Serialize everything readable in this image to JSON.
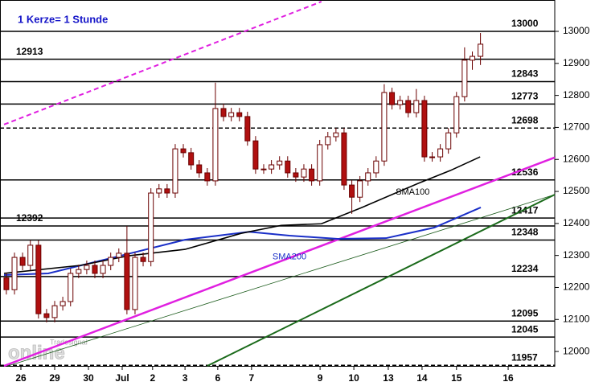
{
  "chart_data": {
    "type": "candlestick",
    "title": "1 Kerze= 1 Stunde",
    "xlim": [
      0,
      16.31
    ],
    "ylim": [
      11955,
      13098
    ],
    "yticks": [
      12000,
      12100,
      12200,
      12300,
      12400,
      12500,
      12600,
      12700,
      12800,
      12900,
      13000
    ],
    "xticks": [
      {
        "value": 0.5,
        "label": "26"
      },
      {
        "value": 1.5,
        "label": "29"
      },
      {
        "value": 2.5,
        "label": "30"
      },
      {
        "value": 3.5,
        "label": "Jul"
      },
      {
        "value": 4.4,
        "label": "2"
      },
      {
        "value": 5.36,
        "label": "3"
      },
      {
        "value": 6.33,
        "label": "6"
      },
      {
        "value": 7.33,
        "label": "7"
      },
      {
        "value": 9.36,
        "label": "9"
      },
      {
        "value": 10.36,
        "label": "10"
      },
      {
        "value": 11.38,
        "label": "13"
      },
      {
        "value": 12.38,
        "label": "14"
      },
      {
        "value": 13.4,
        "label": "15"
      },
      {
        "value": 14.93,
        "label": "16"
      }
    ],
    "up_color": "#ffffff",
    "down_color": "#b01010",
    "outline_color": "#6a0000",
    "x": [
      0.07,
      0.31,
      0.55,
      0.78,
      1.02,
      1.26,
      1.5,
      1.74,
      1.97,
      2.21,
      2.45,
      2.69,
      2.93,
      3.16,
      3.4,
      3.64,
      3.88,
      4.12,
      4.35,
      4.59,
      4.83,
      5.07,
      5.31,
      5.54,
      5.78,
      6.02,
      6.26,
      6.5,
      6.73,
      6.97,
      7.21,
      7.45,
      7.69,
      7.92,
      8.16,
      8.4,
      8.64,
      8.88,
      9.11,
      9.35,
      9.59,
      9.83,
      10.07,
      10.3,
      10.54,
      10.78,
      11.02,
      11.26,
      11.49,
      11.73,
      11.97,
      12.21,
      12.45,
      12.68,
      12.92,
      13.16,
      13.4,
      13.64,
      13.87,
      14.11
    ],
    "open": [
      12230,
      12193,
      12294,
      12269,
      12332,
      12118,
      12106,
      12143,
      12156,
      12244,
      12256,
      12269,
      12244,
      12269,
      12294,
      12307,
      12131,
      12294,
      12281,
      12495,
      12508,
      12495,
      12633,
      12621,
      12583,
      12558,
      12533,
      12759,
      12734,
      12746,
      12734,
      12658,
      12570,
      12570,
      12583,
      12595,
      12558,
      12545,
      12570,
      12533,
      12646,
      12671,
      12683,
      12520,
      12482,
      12533,
      12558,
      12595,
      12809,
      12771,
      12784,
      12746,
      12784,
      12608,
      12608,
      12633,
      12683,
      12796,
      12910,
      12922
    ],
    "high": [
      12245,
      12309,
      12309,
      12347,
      12347,
      12133,
      12158,
      12171,
      12259,
      12271,
      12284,
      12284,
      12284,
      12309,
      12322,
      12392,
      12309,
      12309,
      12510,
      12523,
      12523,
      12648,
      12648,
      12636,
      12598,
      12573,
      12840,
      12774,
      12761,
      12761,
      12749,
      12673,
      12585,
      12598,
      12610,
      12610,
      12573,
      12585,
      12585,
      12661,
      12686,
      12698,
      12698,
      12535,
      12548,
      12573,
      12610,
      12835,
      12824,
      12799,
      12799,
      12820,
      12799,
      12623,
      12648,
      12698,
      12811,
      12950,
      12937,
      12995
    ],
    "low": [
      12178,
      12178,
      12254,
      12254,
      12103,
      12091,
      12091,
      12128,
      12141,
      12229,
      12241,
      12229,
      12229,
      12254,
      12279,
      12116,
      12116,
      12266,
      12266,
      12480,
      12480,
      12480,
      12606,
      12568,
      12543,
      12518,
      12518,
      12719,
      12719,
      12719,
      12643,
      12555,
      12555,
      12555,
      12568,
      12543,
      12530,
      12530,
      12518,
      12518,
      12631,
      12656,
      12505,
      12430,
      12467,
      12518,
      12543,
      12580,
      12756,
      12756,
      12731,
      12731,
      12593,
      12593,
      12593,
      12618,
      12668,
      12781,
      12880,
      12895
    ],
    "close": [
      12193,
      12294,
      12269,
      12332,
      12118,
      12106,
      12143,
      12156,
      12244,
      12256,
      12269,
      12244,
      12269,
      12294,
      12307,
      12131,
      12294,
      12281,
      12495,
      12508,
      12495,
      12633,
      12621,
      12583,
      12558,
      12533,
      12759,
      12734,
      12746,
      12734,
      12658,
      12570,
      12570,
      12583,
      12595,
      12558,
      12545,
      12570,
      12533,
      12646,
      12671,
      12683,
      12520,
      12482,
      12533,
      12558,
      12595,
      12809,
      12771,
      12784,
      12746,
      12784,
      12608,
      12608,
      12633,
      12683,
      12796,
      12910,
      12922,
      12960
    ],
    "levels": [
      {
        "value": 13000,
        "side": "right",
        "style": "solid"
      },
      {
        "value": 12913,
        "side": "left",
        "style": "solid"
      },
      {
        "value": 12843,
        "side": "right",
        "style": "solid"
      },
      {
        "value": 12773,
        "side": "right",
        "style": "solid"
      },
      {
        "value": 12698,
        "side": "right",
        "style": "dashed"
      },
      {
        "value": 12536,
        "side": "right",
        "style": "solid"
      },
      {
        "value": 12417,
        "side": "right",
        "style": "solid"
      },
      {
        "value": 12392,
        "side": "left",
        "style": "solid"
      },
      {
        "value": 12348,
        "side": "right",
        "style": "solid"
      },
      {
        "value": 12234,
        "side": "right",
        "style": "solid"
      },
      {
        "value": 12095,
        "side": "right",
        "style": "solid"
      },
      {
        "value": 12045,
        "side": "right",
        "style": "solid"
      },
      {
        "value": 11957,
        "side": "right",
        "style": "dashed"
      }
    ],
    "lines": [
      {
        "name": "SMA200",
        "color": "#1a2fc8",
        "width": 2,
        "x": [
          0,
          1.31,
          3.45,
          5.36,
          7.26,
          8.45,
          9.88,
          11.31,
          12.74,
          14.12
        ],
        "values": [
          12239,
          12244,
          12299,
          12349,
          12374,
          12362,
          12352,
          12354,
          12387,
          12450
        ],
        "label_x": 7.95,
        "label_y": 12295
      },
      {
        "name": "SMA100",
        "color": "#000000",
        "width": 1.6,
        "x": [
          0,
          2.26,
          3.69,
          5.36,
          7.02,
          8.21,
          9.4,
          10.6,
          12.26,
          13.21,
          14.1
        ],
        "values": [
          12244,
          12269,
          12299,
          12319,
          12369,
          12394,
          12399,
          12450,
          12525,
          12565,
          12608
        ],
        "label_x": 11.6,
        "label_y": 12498
      }
    ],
    "trendlines": [
      {
        "color": "#e020e0",
        "width": 2,
        "style": "dashed",
        "x": [
          0,
          9.4
        ],
        "values": [
          12709,
          13093
        ]
      },
      {
        "color": "#e020e0",
        "width": 2.5,
        "style": "solid",
        "x": [
          0,
          16.31
        ],
        "values": [
          11955,
          12606
        ]
      },
      {
        "color": "#1a5a1a",
        "width": 0.8,
        "style": "solid",
        "x": [
          0.12,
          16.31
        ],
        "values": [
          11955,
          12490
        ]
      },
      {
        "color": "#1a6a1a",
        "width": 2,
        "style": "solid",
        "x": [
          6.02,
          16.31
        ],
        "values": [
          11955,
          12490
        ]
      }
    ],
    "watermark": [
      "Tradesignal",
      "online"
    ]
  }
}
